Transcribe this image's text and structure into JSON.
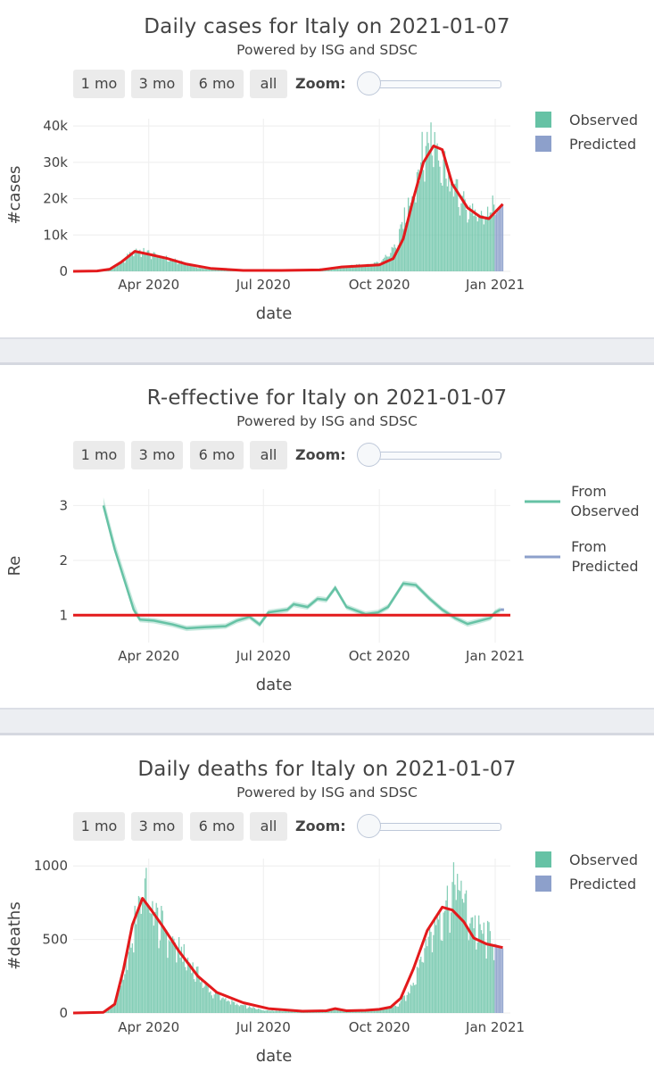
{
  "panels": [
    {
      "title": "Daily cases for Italy on 2021-01-07",
      "subtitle": "Powered by ISG and SDSC",
      "buttons": [
        "1 mo",
        "3 mo",
        "6 mo",
        "all"
      ],
      "zoom_label": "Zoom:",
      "legend": [
        "Observed",
        "Predicted"
      ]
    },
    {
      "title": "R-effective for Italy on 2021-01-07",
      "subtitle": "Powered by ISG and SDSC",
      "buttons": [
        "1 mo",
        "3 mo",
        "6 mo",
        "all"
      ],
      "zoom_label": "Zoom:",
      "legend": [
        "From\nObserved",
        "From\nPredicted"
      ]
    },
    {
      "title": "Daily deaths for Italy on 2021-01-07",
      "subtitle": "Powered by ISG and SDSC",
      "buttons": [
        "1 mo",
        "3 mo",
        "6 mo",
        "all"
      ],
      "zoom_label": "Zoom:",
      "legend": [
        "Observed",
        "Predicted"
      ]
    }
  ],
  "colors": {
    "observed": "#66c2a5",
    "predicted": "#8da0cb",
    "fit_line": "#e31a1c",
    "axis_text": "#444444"
  },
  "chart_data": [
    {
      "type": "bar",
      "title": "Daily cases for Italy on 2021-01-07",
      "subtitle": "Powered by ISG and SDSC",
      "xlabel": "date",
      "ylabel": "#cases",
      "x_ticks": [
        "Apr 2020",
        "Jul 2020",
        "Oct 2020",
        "Jan 2021"
      ],
      "y_ticks": [
        "0",
        "10k",
        "20k",
        "30k",
        "40k"
      ],
      "ylim": [
        0,
        42000
      ],
      "xlim": [
        "2020-02-01",
        "2021-01-13"
      ],
      "legend_position": "top-right",
      "series": [
        {
          "name": "Observed",
          "type": "bar",
          "x_range": [
            "2020-02-20",
            "2020-12-31"
          ],
          "knots": [
            [
              "2020-02-20",
              0
            ],
            [
              "2020-03-01",
              500
            ],
            [
              "2020-03-10",
              2500
            ],
            [
              "2020-03-21",
              6200
            ],
            [
              "2020-03-28",
              5500
            ],
            [
              "2020-04-10",
              4300
            ],
            [
              "2020-04-25",
              2700
            ],
            [
              "2020-05-10",
              1000
            ],
            [
              "2020-06-01",
              300
            ],
            [
              "2020-07-01",
              200
            ],
            [
              "2020-08-01",
              300
            ],
            [
              "2020-08-20",
              900
            ],
            [
              "2020-09-10",
              1600
            ],
            [
              "2020-10-01",
              2300
            ],
            [
              "2020-10-15",
              7500
            ],
            [
              "2020-10-25",
              20000
            ],
            [
              "2020-11-05",
              34000
            ],
            [
              "2020-11-13",
              39000
            ],
            [
              "2020-11-25",
              27000
            ],
            [
              "2020-12-05",
              20000
            ],
            [
              "2020-12-15",
              17000
            ],
            [
              "2020-12-22",
              14500
            ],
            [
              "2020-12-31",
              20000
            ]
          ]
        },
        {
          "name": "Predicted",
          "type": "bar",
          "x_range": [
            "2021-01-01",
            "2021-01-07"
          ],
          "values": [
            15500,
            16000,
            16500,
            17000,
            17500,
            18000,
            18500
          ]
        },
        {
          "name": "fit",
          "type": "line",
          "points": [
            [
              "2020-02-01",
              0
            ],
            [
              "2020-02-20",
              100
            ],
            [
              "2020-03-01",
              600
            ],
            [
              "2020-03-10",
              2500
            ],
            [
              "2020-03-21",
              5500
            ],
            [
              "2020-04-01",
              4700
            ],
            [
              "2020-04-15",
              3600
            ],
            [
              "2020-05-01",
              2000
            ],
            [
              "2020-05-20",
              800
            ],
            [
              "2020-06-15",
              250
            ],
            [
              "2020-07-15",
              250
            ],
            [
              "2020-08-15",
              400
            ],
            [
              "2020-09-01",
              1200
            ],
            [
              "2020-10-01",
              1800
            ],
            [
              "2020-10-12",
              3500
            ],
            [
              "2020-10-20",
              9000
            ],
            [
              "2020-10-28",
              20000
            ],
            [
              "2020-11-05",
              30000
            ],
            [
              "2020-11-13",
              34500
            ],
            [
              "2020-11-20",
              33500
            ],
            [
              "2020-11-28",
              24000
            ],
            [
              "2020-12-10",
              17500
            ],
            [
              "2020-12-20",
              15000
            ],
            [
              "2020-12-27",
              14500
            ],
            [
              "2021-01-07",
              18500
            ]
          ]
        }
      ]
    },
    {
      "type": "line",
      "title": "R-effective for Italy on 2021-01-07",
      "subtitle": "Powered by ISG and SDSC",
      "xlabel": "date",
      "ylabel": "Re",
      "x_ticks": [
        "Apr 2020",
        "Jul 2020",
        "Oct 2020",
        "Jan 2021"
      ],
      "y_ticks": [
        "1",
        "2",
        "3"
      ],
      "ylim": [
        0.5,
        3.3
      ],
      "xlim": [
        "2020-02-01",
        "2021-01-13"
      ],
      "legend_position": "top-right",
      "grid": true,
      "series": [
        {
          "name": "From Observed",
          "type": "line",
          "points": [
            [
              "2020-02-25",
              3.0
            ],
            [
              "2020-03-05",
              2.2
            ],
            [
              "2020-03-20",
              1.1
            ],
            [
              "2020-03-25",
              0.92
            ],
            [
              "2020-04-05",
              0.9
            ],
            [
              "2020-04-20",
              0.83
            ],
            [
              "2020-05-01",
              0.76
            ],
            [
              "2020-05-15",
              0.78
            ],
            [
              "2020-06-01",
              0.8
            ],
            [
              "2020-06-10",
              0.9
            ],
            [
              "2020-06-20",
              0.97
            ],
            [
              "2020-06-28",
              0.83
            ],
            [
              "2020-07-05",
              1.05
            ],
            [
              "2020-07-20",
              1.1
            ],
            [
              "2020-07-25",
              1.2
            ],
            [
              "2020-08-05",
              1.15
            ],
            [
              "2020-08-13",
              1.3
            ],
            [
              "2020-08-20",
              1.28
            ],
            [
              "2020-08-27",
              1.5
            ],
            [
              "2020-09-05",
              1.15
            ],
            [
              "2020-09-20",
              1.02
            ],
            [
              "2020-09-30",
              1.05
            ],
            [
              "2020-10-08",
              1.15
            ],
            [
              "2020-10-20",
              1.58
            ],
            [
              "2020-10-30",
              1.55
            ],
            [
              "2020-11-10",
              1.3
            ],
            [
              "2020-11-20",
              1.1
            ],
            [
              "2020-11-30",
              0.95
            ],
            [
              "2020-12-10",
              0.84
            ],
            [
              "2020-12-20",
              0.9
            ],
            [
              "2020-12-28",
              0.95
            ],
            [
              "2021-01-01",
              1.05
            ],
            [
              "2021-01-05",
              1.1
            ]
          ]
        },
        {
          "name": "From Predicted",
          "type": "line",
          "points": [
            [
              "2021-01-05",
              1.1
            ],
            [
              "2021-01-08",
              1.1
            ]
          ]
        },
        {
          "name": "Re = 1",
          "type": "line",
          "points": [
            [
              "2020-02-01",
              1
            ],
            [
              "2021-01-13",
              1
            ]
          ]
        }
      ]
    },
    {
      "type": "bar",
      "title": "Daily deaths for Italy on 2021-01-07",
      "subtitle": "Powered by ISG and SDSC",
      "xlabel": "date",
      "ylabel": "#deaths",
      "x_ticks": [
        "Apr 2020",
        "Jul 2020",
        "Oct 2020",
        "Jan 2021"
      ],
      "y_ticks": [
        "0",
        "500",
        "1000"
      ],
      "ylim": [
        0,
        1050
      ],
      "xlim": [
        "2020-02-01",
        "2021-01-13"
      ],
      "legend_position": "top-right",
      "series": [
        {
          "name": "Observed",
          "type": "bar",
          "x_range": [
            "2020-02-22",
            "2020-12-31"
          ],
          "knots": [
            [
              "2020-02-22",
              0
            ],
            [
              "2020-03-05",
              60
            ],
            [
              "2020-03-15",
              350
            ],
            [
              "2020-03-27",
              920
            ],
            [
              "2020-04-05",
              700
            ],
            [
              "2020-04-20",
              500
            ],
            [
              "2020-05-05",
              330
            ],
            [
              "2020-05-20",
              150
            ],
            [
              "2020-06-10",
              60
            ],
            [
              "2020-07-01",
              20
            ],
            [
              "2020-08-01",
              10
            ],
            [
              "2020-08-27",
              25
            ],
            [
              "2020-09-15",
              15
            ],
            [
              "2020-10-01",
              30
            ],
            [
              "2020-10-15",
              50
            ],
            [
              "2020-10-25",
              150
            ],
            [
              "2020-11-05",
              450
            ],
            [
              "2020-11-15",
              650
            ],
            [
              "2020-11-25",
              800
            ],
            [
              "2020-12-03",
              940
            ],
            [
              "2020-12-10",
              700
            ],
            [
              "2020-12-20",
              560
            ],
            [
              "2020-12-31",
              520
            ]
          ]
        },
        {
          "name": "Predicted",
          "type": "bar",
          "x_range": [
            "2021-01-01",
            "2021-01-07"
          ],
          "values": [
            470,
            465,
            460,
            455,
            450,
            445,
            440
          ]
        },
        {
          "name": "fit",
          "type": "line",
          "points": [
            [
              "2020-02-01",
              0
            ],
            [
              "2020-02-25",
              5
            ],
            [
              "2020-03-05",
              60
            ],
            [
              "2020-03-12",
              300
            ],
            [
              "2020-03-19",
              600
            ],
            [
              "2020-03-27",
              780
            ],
            [
              "2020-04-03",
              700
            ],
            [
              "2020-04-12",
              590
            ],
            [
              "2020-04-25",
              420
            ],
            [
              "2020-05-10",
              250
            ],
            [
              "2020-05-25",
              140
            ],
            [
              "2020-06-15",
              70
            ],
            [
              "2020-07-05",
              30
            ],
            [
              "2020-08-01",
              12
            ],
            [
              "2020-08-20",
              15
            ],
            [
              "2020-08-27",
              30
            ],
            [
              "2020-09-05",
              15
            ],
            [
              "2020-09-20",
              18
            ],
            [
              "2020-10-01",
              25
            ],
            [
              "2020-10-10",
              40
            ],
            [
              "2020-10-18",
              100
            ],
            [
              "2020-10-28",
              300
            ],
            [
              "2020-11-08",
              560
            ],
            [
              "2020-11-20",
              720
            ],
            [
              "2020-11-28",
              700
            ],
            [
              "2020-12-07",
              620
            ],
            [
              "2020-12-15",
              510
            ],
            [
              "2020-12-25",
              470
            ],
            [
              "2021-01-07",
              445
            ]
          ]
        }
      ]
    }
  ]
}
